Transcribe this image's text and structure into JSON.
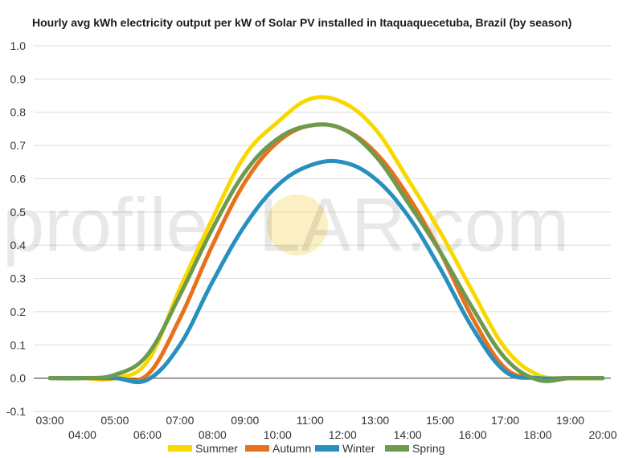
{
  "watermark": {
    "part1": "profile",
    "part2": "S",
    "part3": "LAR.com",
    "sun_color": "#f7e08a"
  },
  "chart_data": {
    "type": "line",
    "title": "Hourly avg kWh electricity output per kW of Solar PV installed in Itaquaquecetuba, Brazil (by season)",
    "xlabel": "",
    "ylabel": "",
    "ylim": [
      -0.1,
      1.0
    ],
    "yticks": [
      -0.1,
      0.0,
      0.1,
      0.2,
      0.3,
      0.4,
      0.5,
      0.6,
      0.7,
      0.8,
      0.9,
      1.0
    ],
    "ytick_labels": [
      "-0.1",
      "0.0",
      "0.1",
      "0.2",
      "0.3",
      "0.4",
      "0.5",
      "0.6",
      "0.7",
      "0.8",
      "0.9",
      "1.0"
    ],
    "x": [
      "03:00",
      "04:00",
      "05:00",
      "06:00",
      "07:00",
      "08:00",
      "09:00",
      "10:00",
      "11:00",
      "12:00",
      "13:00",
      "14:00",
      "15:00",
      "16:00",
      "17:00",
      "18:00",
      "19:00",
      "20:00"
    ],
    "grid": true,
    "legend_position": "bottom",
    "series": [
      {
        "name": "Summer",
        "color": "#f9d800",
        "values": [
          0,
          0,
          0,
          0.05,
          0.27,
          0.48,
          0.67,
          0.77,
          0.84,
          0.83,
          0.75,
          0.6,
          0.44,
          0.26,
          0.09,
          0.01,
          0,
          0
        ]
      },
      {
        "name": "Autumn",
        "color": "#e8711c",
        "values": [
          0,
          0,
          0,
          0.01,
          0.18,
          0.4,
          0.59,
          0.71,
          0.76,
          0.75,
          0.68,
          0.55,
          0.38,
          0.18,
          0.03,
          0,
          0,
          0
        ]
      },
      {
        "name": "Winter",
        "color": "#2790be",
        "values": [
          0,
          0,
          0,
          -0.005,
          0.1,
          0.29,
          0.46,
          0.58,
          0.64,
          0.65,
          0.6,
          0.49,
          0.33,
          0.15,
          0.02,
          0,
          0,
          0
        ]
      },
      {
        "name": "Spring",
        "color": "#6e9a4e",
        "values": [
          0,
          0,
          0.01,
          0.07,
          0.25,
          0.45,
          0.62,
          0.72,
          0.76,
          0.75,
          0.67,
          0.53,
          0.38,
          0.21,
          0.06,
          -0.005,
          0,
          0
        ]
      }
    ]
  }
}
